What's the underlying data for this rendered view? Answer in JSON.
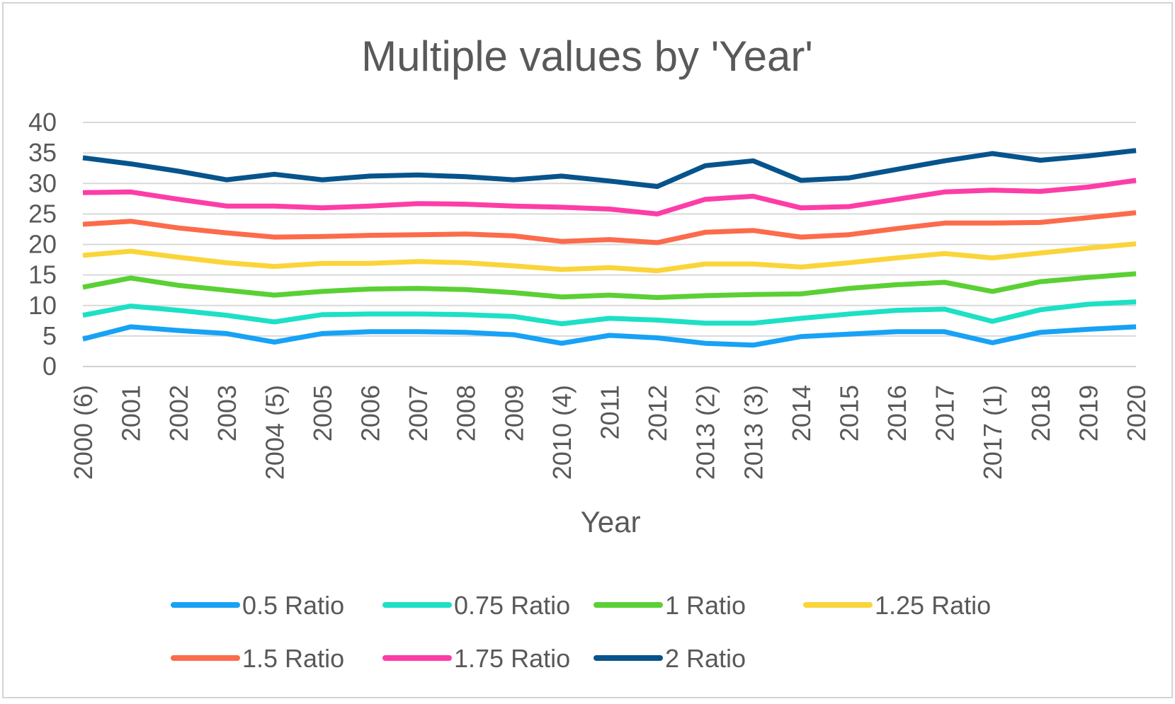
{
  "chart_data": {
    "type": "line",
    "title": "Multiple values by 'Year'",
    "xlabel": "Year",
    "ylabel": "",
    "ylim": [
      0,
      40
    ],
    "yticks": [
      0,
      5,
      10,
      15,
      20,
      25,
      30,
      35,
      40
    ],
    "grid": true,
    "legend_position": "bottom",
    "categories": [
      "2000 (6)",
      "2001",
      "2002",
      "2003",
      "2004 (5)",
      "2005",
      "2006",
      "2007",
      "2008",
      "2009",
      "2010 (4)",
      "2011",
      "2012",
      "2013 (2)",
      "2013 (3)",
      "2014",
      "2015",
      "2016",
      "2017",
      "2017 (1)",
      "2018",
      "2019",
      "2020"
    ],
    "series": [
      {
        "name": "0.5 Ratio",
        "color": "#17a2f5",
        "values": [
          4.5,
          6.5,
          5.9,
          5.4,
          4.0,
          5.4,
          5.7,
          5.7,
          5.6,
          5.2,
          3.8,
          5.1,
          4.7,
          3.8,
          3.5,
          4.9,
          5.3,
          5.7,
          5.7,
          3.9,
          5.6,
          6.1,
          6.5
        ]
      },
      {
        "name": "0.75 Ratio",
        "color": "#1de0c5",
        "values": [
          8.4,
          9.9,
          9.2,
          8.4,
          7.3,
          8.5,
          8.6,
          8.6,
          8.5,
          8.2,
          7.0,
          7.9,
          7.6,
          7.1,
          7.1,
          7.9,
          8.6,
          9.2,
          9.4,
          7.4,
          9.3,
          10.2,
          10.6
        ]
      },
      {
        "name": "1 Ratio",
        "color": "#5ad034",
        "values": [
          13.0,
          14.5,
          13.3,
          12.5,
          11.7,
          12.3,
          12.7,
          12.8,
          12.6,
          12.1,
          11.4,
          11.7,
          11.3,
          11.6,
          11.8,
          11.9,
          12.8,
          13.4,
          13.8,
          12.3,
          13.9,
          14.6,
          15.2
        ]
      },
      {
        "name": "1.25 Ratio",
        "color": "#fad53a",
        "values": [
          18.2,
          18.9,
          17.9,
          17.0,
          16.4,
          16.9,
          16.9,
          17.2,
          17.0,
          16.5,
          15.9,
          16.2,
          15.7,
          16.8,
          16.8,
          16.3,
          17.0,
          17.8,
          18.5,
          17.8,
          18.6,
          19.4,
          20.1
        ]
      },
      {
        "name": "1.5 Ratio",
        "color": "#fc6b4b",
        "values": [
          23.3,
          23.8,
          22.7,
          21.9,
          21.2,
          21.3,
          21.5,
          21.6,
          21.7,
          21.4,
          20.5,
          20.8,
          20.3,
          22.0,
          22.3,
          21.2,
          21.6,
          22.6,
          23.5,
          23.5,
          23.6,
          24.4,
          25.2
        ]
      },
      {
        "name": "1.75 Ratio",
        "color": "#fd3da7",
        "values": [
          28.5,
          28.6,
          27.4,
          26.3,
          26.3,
          26.0,
          26.3,
          26.7,
          26.6,
          26.3,
          26.1,
          25.8,
          25.0,
          27.4,
          27.9,
          26.0,
          26.2,
          27.4,
          28.6,
          28.9,
          28.7,
          29.4,
          30.5
        ]
      },
      {
        "name": "2 Ratio",
        "color": "#07548c",
        "values": [
          34.2,
          33.2,
          32.0,
          30.6,
          31.5,
          30.6,
          31.2,
          31.4,
          31.1,
          30.6,
          31.2,
          30.4,
          29.5,
          32.9,
          33.7,
          30.5,
          30.9,
          32.3,
          33.7,
          34.9,
          33.8,
          34.5,
          35.4
        ]
      }
    ]
  }
}
